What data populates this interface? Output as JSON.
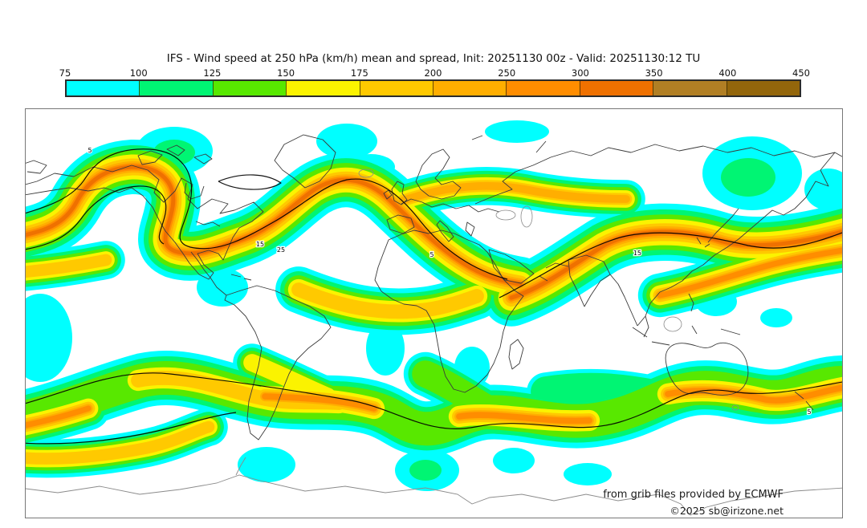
{
  "title": "IFS - Wind speed at 250 hPa (km/h) mean and spread, Init: 20251130 00z - Valid: 20251130:12 TU",
  "colorbar": {
    "tick_labels": [
      "75",
      "100",
      "125",
      "150",
      "175",
      "200",
      "250",
      "300",
      "350",
      "400",
      "450"
    ],
    "unit": "km/h",
    "segments": [
      {
        "range": "75-100",
        "color": "#00FFFF"
      },
      {
        "range": "100-125",
        "color": "#00F573"
      },
      {
        "range": "125-150",
        "color": "#58E800"
      },
      {
        "range": "150-175",
        "color": "#FBF300"
      },
      {
        "range": "175-200",
        "color": "#FFC900"
      },
      {
        "range": "200-250",
        "color": "#FFAE00"
      },
      {
        "range": "250-300",
        "color": "#FF8D00"
      },
      {
        "range": "300-350",
        "color": "#EF7100"
      },
      {
        "range": "350-400",
        "color": "#B17F24"
      },
      {
        "range": "400-450",
        "color": "#93660B"
      }
    ],
    "border_color": "#2B2B2B"
  },
  "map": {
    "attribution_line1": "from grib files provided by ECMWF",
    "attribution_line2": "©2025 sb@irizone.net",
    "contour_labels": [
      "5",
      "25",
      "15",
      "5",
      "15",
      "5"
    ],
    "coastline_color": "#3a3a3a",
    "inland_line_color": "#8a8a8a",
    "antarctica_color": "#8a8a8a",
    "spread_contour_color": "#000000",
    "border_color": "#777777",
    "background_color": "#ffffff"
  }
}
